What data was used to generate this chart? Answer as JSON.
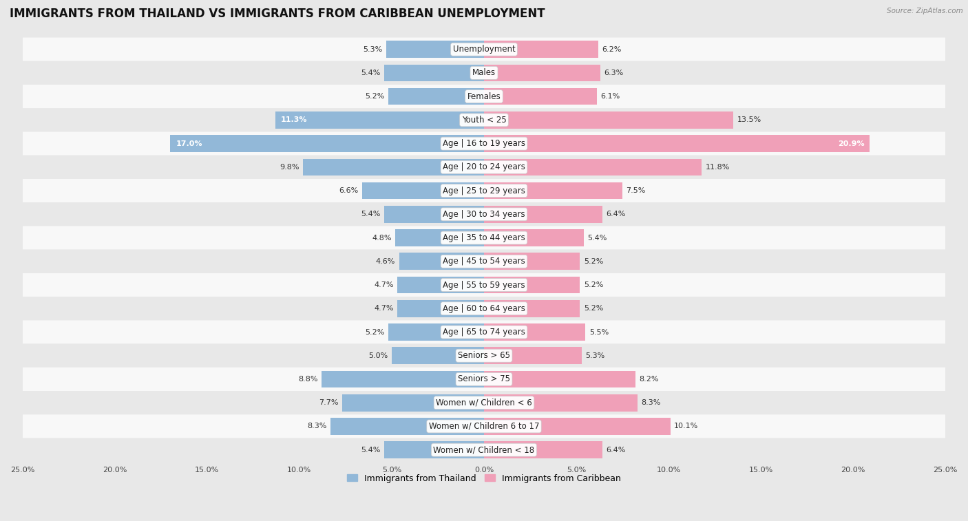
{
  "title": "IMMIGRANTS FROM THAILAND VS IMMIGRANTS FROM CARIBBEAN UNEMPLOYMENT",
  "source": "Source: ZipAtlas.com",
  "categories": [
    "Unemployment",
    "Males",
    "Females",
    "Youth < 25",
    "Age | 16 to 19 years",
    "Age | 20 to 24 years",
    "Age | 25 to 29 years",
    "Age | 30 to 34 years",
    "Age | 35 to 44 years",
    "Age | 45 to 54 years",
    "Age | 55 to 59 years",
    "Age | 60 to 64 years",
    "Age | 65 to 74 years",
    "Seniors > 65",
    "Seniors > 75",
    "Women w/ Children < 6",
    "Women w/ Children 6 to 17",
    "Women w/ Children < 18"
  ],
  "thailand_values": [
    5.3,
    5.4,
    5.2,
    11.3,
    17.0,
    9.8,
    6.6,
    5.4,
    4.8,
    4.6,
    4.7,
    4.7,
    5.2,
    5.0,
    8.8,
    7.7,
    8.3,
    5.4
  ],
  "caribbean_values": [
    6.2,
    6.3,
    6.1,
    13.5,
    20.9,
    11.8,
    7.5,
    6.4,
    5.4,
    5.2,
    5.2,
    5.2,
    5.5,
    5.3,
    8.2,
    8.3,
    10.1,
    6.4
  ],
  "thailand_color": "#92b8d8",
  "caribbean_color": "#f0a0b8",
  "thailand_label": "Immigrants from Thailand",
  "caribbean_label": "Immigrants from Caribbean",
  "axis_limit": 25.0,
  "background_color": "#e8e8e8",
  "bar_background": "#f8f8f8",
  "row_sep_color": "#d0d0d0",
  "title_fontsize": 12,
  "label_fontsize": 8.5,
  "value_fontsize": 8,
  "tick_fontsize": 8
}
